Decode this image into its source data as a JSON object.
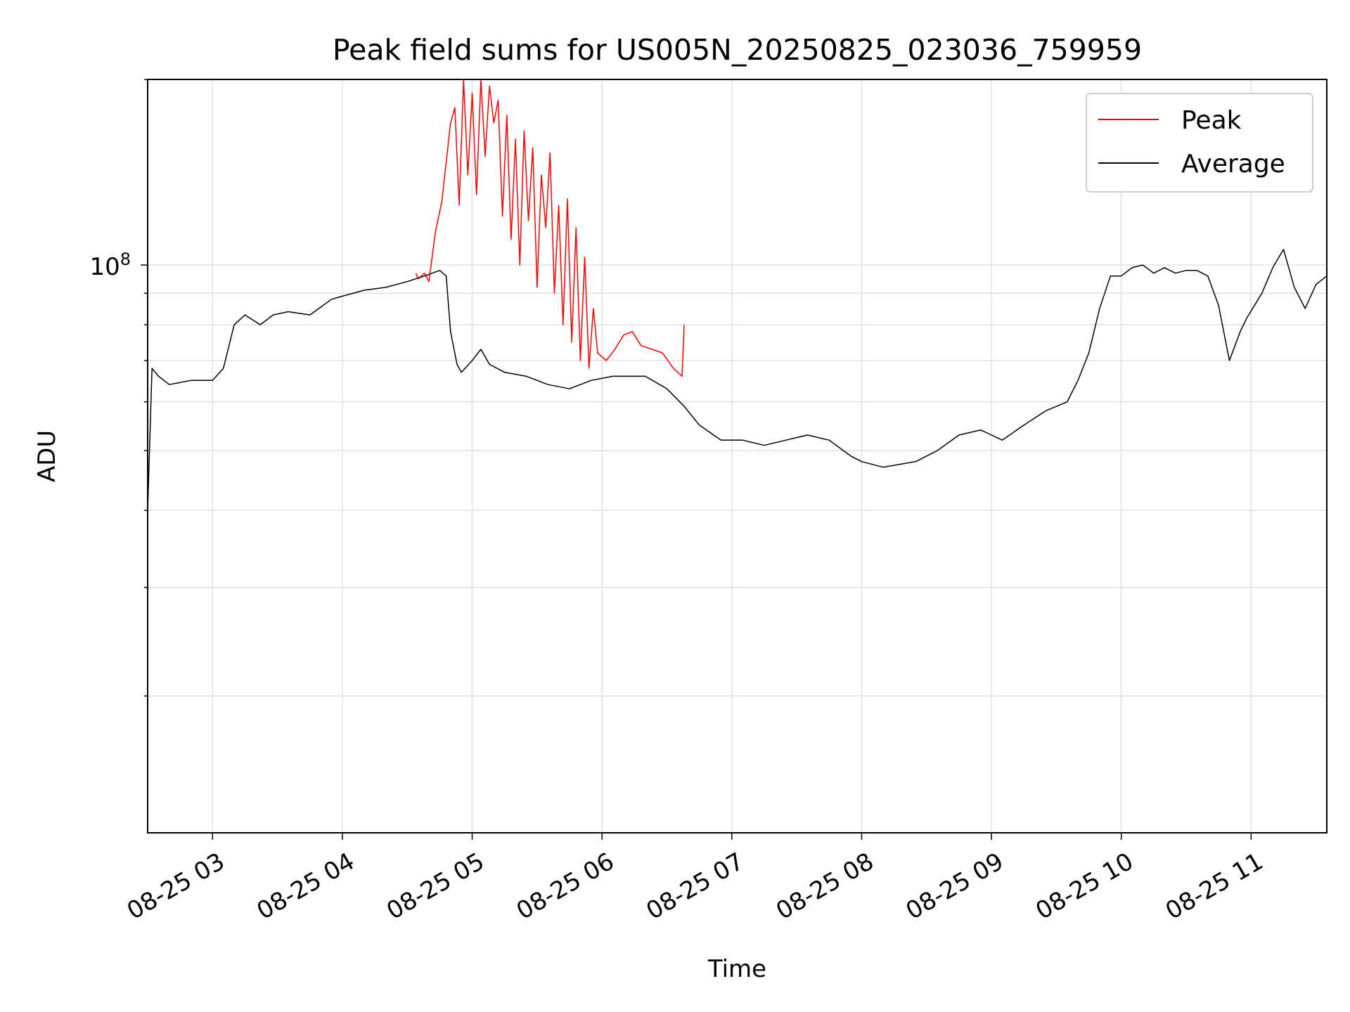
{
  "chart_data": {
    "type": "line",
    "title": "Peak field sums for US005N_20250825_023036_759959",
    "xlabel": "Time",
    "ylabel": "ADU",
    "y_scale": "log",
    "ylim": [
      12000000,
      200000000
    ],
    "xlim": [
      "2025-08-25 02:30",
      "2025-08-25 11:35"
    ],
    "x_tick_labels": [
      "08-25 03",
      "08-25 04",
      "08-25 05",
      "08-25 06",
      "08-25 07",
      "08-25 08",
      "08-25 09",
      "08-25 10",
      "08-25 11"
    ],
    "y_tick_label": {
      "base": "10",
      "exponent": "8"
    },
    "grid": true,
    "legend_position": "upper right",
    "series": [
      {
        "name": "Peak",
        "color": "#ff0000",
        "x": [
          "2025-08-25 04:34",
          "2025-08-25 04:35",
          "2025-08-25 04:38",
          "2025-08-25 04:40",
          "2025-08-25 04:43",
          "2025-08-25 04:46",
          "2025-08-25 04:50",
          "2025-08-25 04:52",
          "2025-08-25 04:54",
          "2025-08-25 04:56",
          "2025-08-25 04:58",
          "2025-08-25 05:00",
          "2025-08-25 05:02",
          "2025-08-25 05:04",
          "2025-08-25 05:06",
          "2025-08-25 05:08",
          "2025-08-25 05:10",
          "2025-08-25 05:12",
          "2025-08-25 05:14",
          "2025-08-25 05:16",
          "2025-08-25 05:18",
          "2025-08-25 05:20",
          "2025-08-25 05:22",
          "2025-08-25 05:24",
          "2025-08-25 05:26",
          "2025-08-25 05:28",
          "2025-08-25 05:30",
          "2025-08-25 05:32",
          "2025-08-25 05:34",
          "2025-08-25 05:36",
          "2025-08-25 05:38",
          "2025-08-25 05:40",
          "2025-08-25 05:42",
          "2025-08-25 05:44",
          "2025-08-25 05:46",
          "2025-08-25 05:48",
          "2025-08-25 05:50",
          "2025-08-25 05:52",
          "2025-08-25 05:54",
          "2025-08-25 05:56",
          "2025-08-25 05:58",
          "2025-08-25 06:02",
          "2025-08-25 06:06",
          "2025-08-25 06:10",
          "2025-08-25 06:14",
          "2025-08-25 06:18",
          "2025-08-25 06:23",
          "2025-08-25 06:28",
          "2025-08-25 06:33",
          "2025-08-25 06:37",
          "2025-08-25 06:38"
        ],
        "values": [
          97000000,
          95000000,
          97000000,
          94000000,
          113000000,
          127000000,
          170000000,
          180000000,
          125000000,
          200000000,
          140000000,
          190000000,
          130000000,
          200000000,
          150000000,
          195000000,
          170000000,
          185000000,
          120000000,
          175000000,
          110000000,
          160000000,
          100000000,
          165000000,
          118000000,
          155000000,
          92000000,
          140000000,
          115000000,
          152000000,
          90000000,
          125000000,
          80000000,
          128000000,
          75000000,
          115000000,
          70000000,
          103000000,
          68000000,
          85000000,
          72000000,
          70000000,
          73000000,
          77000000,
          78000000,
          74000000,
          73000000,
          72000000,
          68000000,
          66000000,
          80000000
        ]
      },
      {
        "name": "Average",
        "color": "#000000",
        "x": [
          "2025-08-25 02:30",
          "2025-08-25 02:32",
          "2025-08-25 02:35",
          "2025-08-25 02:40",
          "2025-08-25 02:50",
          "2025-08-25 03:00",
          "2025-08-25 03:05",
          "2025-08-25 03:10",
          "2025-08-25 03:15",
          "2025-08-25 03:22",
          "2025-08-25 03:28",
          "2025-08-25 03:35",
          "2025-08-25 03:45",
          "2025-08-25 03:55",
          "2025-08-25 04:00",
          "2025-08-25 04:10",
          "2025-08-25 04:20",
          "2025-08-25 04:30",
          "2025-08-25 04:38",
          "2025-08-25 04:45",
          "2025-08-25 04:48",
          "2025-08-25 04:50",
          "2025-08-25 04:53",
          "2025-08-25 04:55",
          "2025-08-25 05:00",
          "2025-08-25 05:04",
          "2025-08-25 05:08",
          "2025-08-25 05:15",
          "2025-08-25 05:25",
          "2025-08-25 05:35",
          "2025-08-25 05:45",
          "2025-08-25 05:55",
          "2025-08-25 06:05",
          "2025-08-25 06:20",
          "2025-08-25 06:30",
          "2025-08-25 06:38",
          "2025-08-25 06:45",
          "2025-08-25 06:55",
          "2025-08-25 07:05",
          "2025-08-25 07:15",
          "2025-08-25 07:25",
          "2025-08-25 07:35",
          "2025-08-25 07:45",
          "2025-08-25 07:55",
          "2025-08-25 08:00",
          "2025-08-25 08:10",
          "2025-08-25 08:25",
          "2025-08-25 08:35",
          "2025-08-25 08:45",
          "2025-08-25 08:55",
          "2025-08-25 09:00",
          "2025-08-25 09:05",
          "2025-08-25 09:15",
          "2025-08-25 09:25",
          "2025-08-25 09:35",
          "2025-08-25 09:40",
          "2025-08-25 09:45",
          "2025-08-25 09:50",
          "2025-08-25 09:55",
          "2025-08-25 10:00",
          "2025-08-25 10:05",
          "2025-08-25 10:10",
          "2025-08-25 10:15",
          "2025-08-25 10:20",
          "2025-08-25 10:25",
          "2025-08-25 10:30",
          "2025-08-25 10:35",
          "2025-08-25 10:40",
          "2025-08-25 10:45",
          "2025-08-25 10:50",
          "2025-08-25 10:55",
          "2025-08-25 10:58",
          "2025-08-25 11:05",
          "2025-08-25 11:10",
          "2025-08-25 11:15",
          "2025-08-25 11:20",
          "2025-08-25 11:25",
          "2025-08-25 11:30",
          "2025-08-25 11:35"
        ],
        "values": [
          40000000,
          68000000,
          66000000,
          64000000,
          65000000,
          65000000,
          68000000,
          80000000,
          83000000,
          80000000,
          83000000,
          84000000,
          83000000,
          88000000,
          89000000,
          91000000,
          92000000,
          94000000,
          96000000,
          98000000,
          96000000,
          78000000,
          69000000,
          67000000,
          70000000,
          73000000,
          69000000,
          67000000,
          66000000,
          64000000,
          63000000,
          65000000,
          66000000,
          66000000,
          63000000,
          59000000,
          55000000,
          52000000,
          52000000,
          51000000,
          52000000,
          53000000,
          52000000,
          49000000,
          48000000,
          47000000,
          48000000,
          50000000,
          53000000,
          54000000,
          53000000,
          52000000,
          55000000,
          58000000,
          60000000,
          65000000,
          72000000,
          85000000,
          96000000,
          96000000,
          99000000,
          100000000,
          97000000,
          99000000,
          97000000,
          98000000,
          98000000,
          96000000,
          86000000,
          70000000,
          78000000,
          82000000,
          90000000,
          99000000,
          106000000,
          92000000,
          85000000,
          93000000,
          96000000
        ]
      }
    ]
  }
}
